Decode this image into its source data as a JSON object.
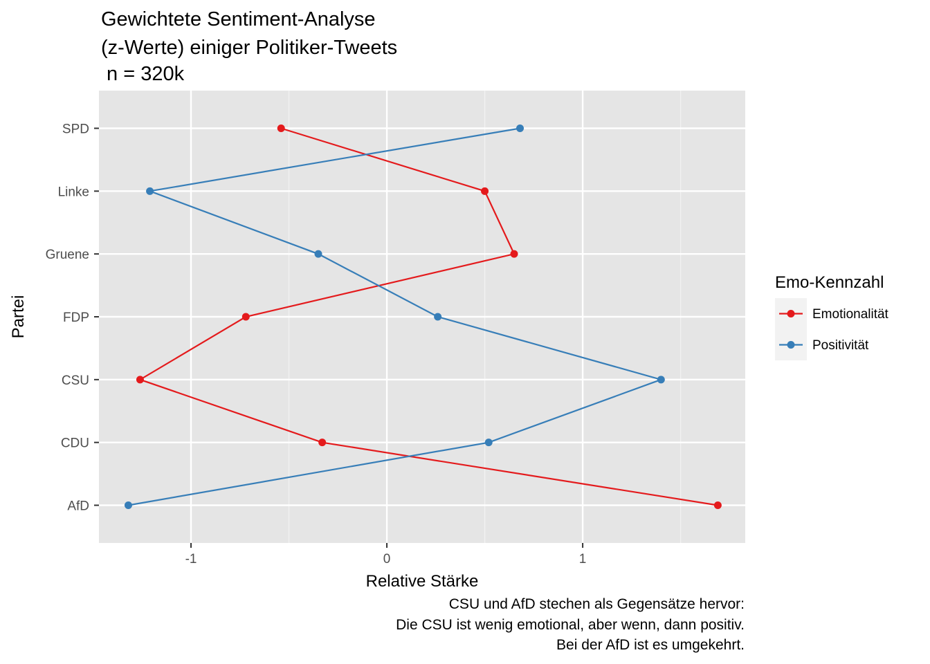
{
  "chart_data": {
    "type": "line",
    "title": [
      "Gewichtete Sentiment-Analyse",
      "(z-Werte) einiger Politiker-Tweets",
      " n = 320k"
    ],
    "xlabel": "Relative Stärke",
    "ylabel": "Partei",
    "caption": [
      "CSU und AfD stechen als Gegensätze hervor:",
      "Die CSU ist wenig emotional, aber wenn, dann positiv.",
      "Bei der AfD ist es umgekehrt."
    ],
    "xlim": [
      -1.47,
      1.83
    ],
    "xticks": [
      -1,
      0,
      1
    ],
    "xtick_labels": [
      "-1",
      "0",
      "1"
    ],
    "categories": [
      "AfD",
      "CDU",
      "CSU",
      "FDP",
      "Gruene",
      "Linke",
      "SPD"
    ],
    "grid": true,
    "legend": {
      "title": "Emo-Kennzahl",
      "position": "right"
    },
    "series": [
      {
        "name": "Emotionalität",
        "color": "#e41a1c",
        "values": [
          1.69,
          -0.33,
          -1.26,
          -0.72,
          0.65,
          0.5,
          -0.54
        ]
      },
      {
        "name": "Positivität",
        "color": "#377eb8",
        "values": [
          -1.32,
          0.52,
          1.4,
          0.26,
          -0.35,
          -1.21,
          0.68
        ]
      }
    ]
  }
}
